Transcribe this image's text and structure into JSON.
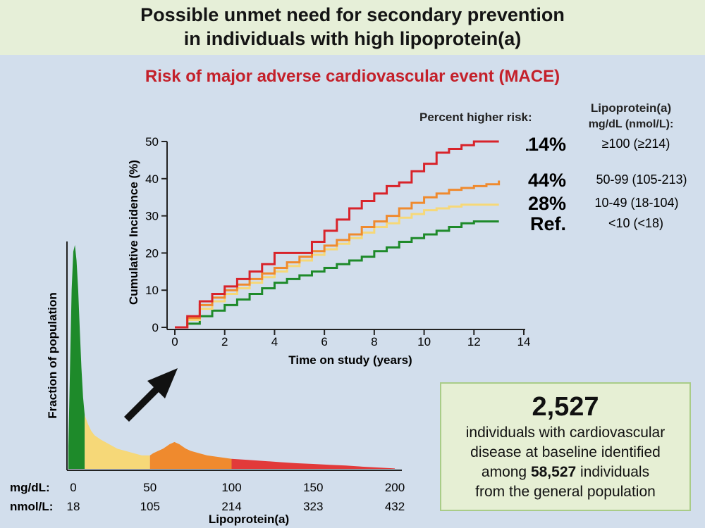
{
  "title_line1": "Possible unmet need for secondary prevention",
  "title_line2": "in individuals with high lipoprotein(a)",
  "subtitle": "Risk of major adverse cardiovascular event (MACE)",
  "legend": {
    "header_risk": "Percent higher risk:",
    "header_lpa_line1": "Lipoprotein(a)",
    "header_lpa_line2": "mg/dL (nmol/L):",
    "rows": [
      {
        "risk": "114%",
        "range": "≥100 (≥214)",
        "color": "#d8232a"
      },
      {
        "risk": "44%",
        "range": "50-99 (105-213)",
        "color": "#ef8a2e"
      },
      {
        "risk": "28%",
        "range": "10-49 (18-104)",
        "color": "#f6d878"
      },
      {
        "risk": "Ref.",
        "range": "<10 (<18)",
        "color": "#1e8a2a"
      }
    ]
  },
  "chart_data": [
    {
      "type": "line",
      "xlabel": "Time on study (years)",
      "ylabel": "Cumulative Incidence (%)",
      "xlim": [
        0,
        14
      ],
      "ylim": [
        0,
        50
      ],
      "xticks": [
        "0",
        "2",
        "4",
        "6",
        "8",
        "10",
        "12",
        "14"
      ],
      "yticks": [
        "0",
        "10",
        "20",
        "30",
        "40",
        "50"
      ],
      "series": [
        {
          "name": "≥100 (≥214)",
          "color": "#d8232a",
          "x": [
            0,
            0.5,
            1,
            1.5,
            2,
            2.5,
            3,
            3.5,
            4,
            4.5,
            5,
            5.5,
            6,
            6.5,
            7,
            7.5,
            8,
            8.5,
            9,
            9.5,
            10,
            10.5,
            11,
            11.5,
            12,
            12.5,
            13
          ],
          "y": [
            0,
            3,
            7,
            9,
            11,
            13,
            15,
            17,
            20,
            20,
            20,
            23,
            26,
            29,
            32,
            34,
            36,
            38,
            39,
            42,
            44,
            47,
            48,
            49,
            50,
            50,
            50
          ]
        },
        {
          "name": "50-99 (105-213)",
          "color": "#ef8a2e",
          "x": [
            0,
            0.5,
            1,
            1.5,
            2,
            2.5,
            3,
            3.5,
            4,
            4.5,
            5,
            5.5,
            6,
            6.5,
            7,
            7.5,
            8,
            8.5,
            9,
            9.5,
            10,
            10.5,
            11,
            11.5,
            12,
            12.5,
            13
          ],
          "y": [
            0,
            2.5,
            6,
            8,
            10,
            11.5,
            13,
            14.5,
            16,
            17.5,
            19,
            20.5,
            22,
            23.5,
            25,
            27,
            28.5,
            30,
            32,
            33.5,
            35,
            36,
            37,
            37.5,
            38,
            38.5,
            39.5
          ]
        },
        {
          "name": "10-49 (18-104)",
          "color": "#f6d878",
          "x": [
            0,
            0.5,
            1,
            1.5,
            2,
            2.5,
            3,
            3.5,
            4,
            4.5,
            5,
            5.5,
            6,
            6.5,
            7,
            7.5,
            8,
            8.5,
            9,
            9.5,
            10,
            10.5,
            11,
            11.5,
            12,
            12.5,
            13
          ],
          "y": [
            0,
            2,
            5,
            7,
            9,
            10.5,
            12,
            13.5,
            15,
            16.5,
            18,
            19.5,
            21,
            22.5,
            24,
            25.5,
            27,
            28,
            29.5,
            30.5,
            31.5,
            32,
            32.5,
            33,
            33,
            33,
            33
          ]
        },
        {
          "name": "<10 (<18)",
          "color": "#1e8a2a",
          "x": [
            0,
            0.5,
            1,
            1.5,
            2,
            2.5,
            3,
            3.5,
            4,
            4.5,
            5,
            5.5,
            6,
            6.5,
            7,
            7.5,
            8,
            8.5,
            9,
            9.5,
            10,
            10.5,
            11,
            11.5,
            12,
            12.5,
            13
          ],
          "y": [
            0,
            1,
            3,
            4.5,
            6,
            7.5,
            9,
            10.5,
            12,
            13,
            14,
            15,
            16,
            17,
            18,
            19,
            20.5,
            21.5,
            23,
            24,
            25,
            26,
            27,
            28,
            28.5,
            28.5,
            28.5
          ]
        }
      ]
    },
    {
      "type": "area",
      "ylabel": "Fraction of population",
      "xlabel": "Lipoprotein(a)",
      "xlim": [
        0,
        200
      ],
      "unit_labels": [
        "mg/dL:",
        "nmol/L:"
      ],
      "ticks_mgdl": [
        "0",
        "50",
        "100",
        "150",
        "200"
      ],
      "ticks_nmol": [
        "18",
        "105",
        "214",
        "323",
        "432"
      ],
      "segments": [
        {
          "from": 0,
          "to": 10,
          "color": "#1e8a2a"
        },
        {
          "from": 10,
          "to": 50,
          "color": "#f6d878"
        },
        {
          "from": 50,
          "to": 100,
          "color": "#ef8a2e"
        },
        {
          "from": 100,
          "to": 200,
          "color": "#e23a3a"
        }
      ],
      "x": [
        0,
        1,
        2,
        3,
        4,
        5,
        6,
        7,
        8,
        9,
        10,
        12,
        14,
        16,
        18,
        20,
        25,
        30,
        35,
        40,
        45,
        50,
        52,
        55,
        58,
        60,
        62,
        65,
        68,
        70,
        72,
        75,
        80,
        85,
        90,
        95,
        100,
        110,
        120,
        130,
        140,
        150,
        160,
        170,
        180,
        190,
        200
      ],
      "y": [
        0.1,
        0.45,
        0.8,
        0.97,
        1.0,
        0.93,
        0.8,
        0.62,
        0.45,
        0.32,
        0.24,
        0.2,
        0.17,
        0.15,
        0.14,
        0.13,
        0.11,
        0.09,
        0.08,
        0.07,
        0.06,
        0.06,
        0.07,
        0.08,
        0.09,
        0.1,
        0.11,
        0.12,
        0.11,
        0.1,
        0.09,
        0.08,
        0.07,
        0.06,
        0.055,
        0.05,
        0.045,
        0.04,
        0.035,
        0.03,
        0.025,
        0.022,
        0.018,
        0.015,
        0.01,
        0.006,
        0.002
      ]
    }
  ],
  "info_box": {
    "count": "2,527",
    "line1": "individuals with cardiovascular",
    "line2": "disease at baseline identified",
    "line3_pre": "among ",
    "line3_bold": "58,527",
    "line3_post": " individuals",
    "line4": "from the general population"
  }
}
